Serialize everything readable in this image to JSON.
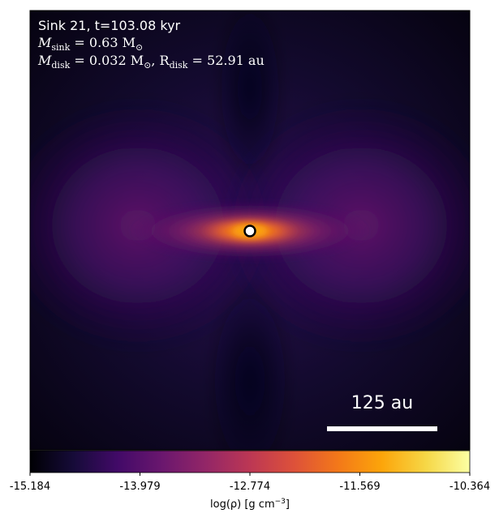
{
  "annotation": {
    "line1": "Sink 21, t=103.08 kyr",
    "line2_prefix": "M",
    "line2_sub": "sink",
    "line2_rest": " = 0.63 M",
    "line2_sun": "⊙",
    "line3_prefix": "M",
    "line3_sub": "disk",
    "line3_mid": " = 0.032 M",
    "line3_sun": "⊙",
    "line3_sep": ", R",
    "line3_sub2": "disk",
    "line3_rest": " = 52.91 au"
  },
  "scale_bar": {
    "label": "125 au",
    "color": "#ffffff"
  },
  "colorbar": {
    "colormap": "inferno",
    "ticks": [
      "-15.184",
      "-13.979",
      "-12.774",
      "-11.569",
      "-10.364"
    ],
    "label_prefix": "log(ρ) [g cm",
    "label_sup": "−3",
    "label_suffix": "]"
  },
  "sink": {
    "ring_color": "#000000",
    "fill_color": "#ffffff"
  }
}
